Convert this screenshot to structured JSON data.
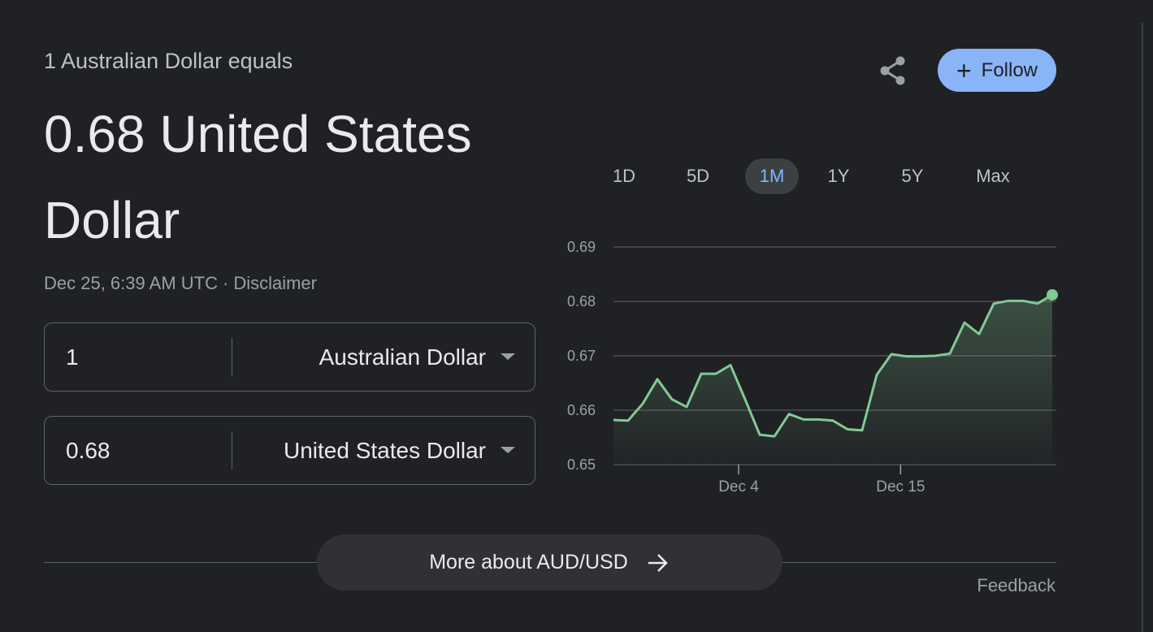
{
  "header": {
    "subtitle": "1 Australian Dollar equals",
    "main_value": "0.68 United States Dollar",
    "timestamp": "Dec 25, 6:39 AM UTC",
    "separator": "·",
    "disclaimer": "Disclaimer"
  },
  "actions": {
    "follow_label": "Follow",
    "follow_icon": "plus-icon",
    "share_icon": "share-icon"
  },
  "converter": {
    "from": {
      "amount": "1",
      "currency": "Australian Dollar"
    },
    "to": {
      "amount": "0.68",
      "currency": "United States Dollar"
    }
  },
  "ranges": {
    "items": [
      "1D",
      "5D",
      "1M",
      "1Y",
      "5Y",
      "Max"
    ],
    "active": "1M"
  },
  "colors": {
    "background": "#202124",
    "line": "#81c995",
    "accent": "#8ab4f8"
  },
  "chart_data": {
    "type": "area",
    "title": "",
    "xlabel": "",
    "ylabel": "",
    "ylim": [
      0.65,
      0.69
    ],
    "yticks": [
      "0.65",
      "0.66",
      "0.67",
      "0.68",
      "0.69"
    ],
    "xticks": [
      {
        "label": "Dec 4",
        "day": 4
      },
      {
        "label": "Dec 15",
        "day": 15
      }
    ],
    "grid": true,
    "x_start_day": 25.5,
    "x_end_day": 55.3,
    "values": [
      0.6582,
      0.6581,
      0.6612,
      0.6657,
      0.662,
      0.6606,
      0.6667,
      0.6667,
      0.6683,
      0.662,
      0.6555,
      0.6552,
      0.6593,
      0.6583,
      0.6583,
      0.6581,
      0.6565,
      0.6563,
      0.6665,
      0.6703,
      0.6699,
      0.6699,
      0.67,
      0.6704,
      0.6761,
      0.674,
      0.6796,
      0.6801,
      0.6801,
      0.6796,
      0.6812
    ]
  },
  "footer": {
    "more_label": "More about AUD/USD",
    "feedback": "Feedback"
  }
}
